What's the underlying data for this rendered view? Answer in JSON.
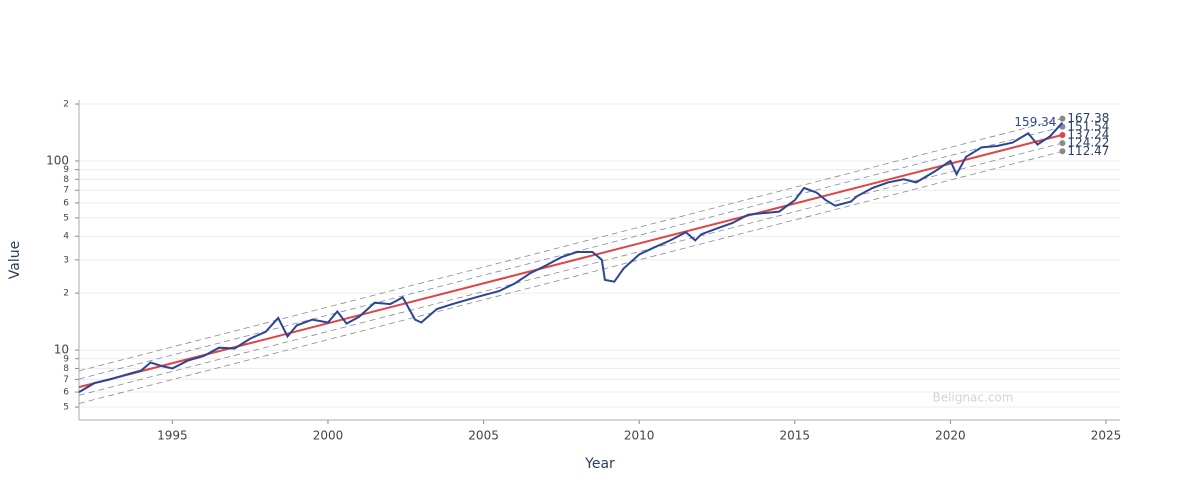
{
  "chart_data": {
    "type": "line",
    "xlabel": "Year",
    "ylabel": "Value",
    "watermark": "Belignac.com",
    "xlim": [
      1992,
      2025.45
    ],
    "xticks": [
      1995,
      2000,
      2005,
      2010,
      2015,
      2020,
      2025
    ],
    "ylim": [
      4.27,
      210
    ],
    "log_y": true,
    "grid": true,
    "yticks": [
      5,
      6,
      7,
      8,
      9,
      10,
      {
        "value": 20,
        "label": "2"
      },
      {
        "value": 30,
        "label": "3"
      },
      {
        "value": 40,
        "label": "4"
      },
      {
        "value": 50,
        "label": "5"
      },
      {
        "value": 60,
        "label": "6"
      },
      {
        "value": 70,
        "label": "7"
      },
      {
        "value": 80,
        "label": "8"
      },
      {
        "value": 90,
        "label": "9"
      },
      100,
      {
        "value": 200,
        "label": "2"
      }
    ],
    "series": [
      {
        "color": "#2a4694",
        "role": "price",
        "x": [
          1992.0,
          1992.5,
          1993.0,
          1993.5,
          1994.0,
          1994.3,
          1994.7,
          1995.0,
          1995.5,
          1996.0,
          1996.5,
          1997.0,
          1997.5,
          1998.0,
          1998.4,
          1998.7,
          1999.0,
          1999.5,
          2000.0,
          2000.3,
          2000.6,
          2001.0,
          2001.5,
          2002.0,
          2002.4,
          2002.8,
          2003.0,
          2003.5,
          2004.0,
          2004.5,
          2005.0,
          2005.5,
          2006.0,
          2006.5,
          2007.0,
          2007.5,
          2008.0,
          2008.5,
          2008.8,
          2008.9,
          2009.2,
          2009.5,
          2010.0,
          2010.5,
          2011.0,
          2011.5,
          2011.8,
          2012.0,
          2012.5,
          2013.0,
          2013.5,
          2014.0,
          2014.5,
          2015.0,
          2015.3,
          2015.7,
          2016.0,
          2016.3,
          2016.8,
          2017.0,
          2017.5,
          2018.0,
          2018.5,
          2018.9,
          2019.5,
          2020.0,
          2020.2,
          2020.5,
          2021.0,
          2021.5,
          2022.0,
          2022.5,
          2022.8,
          2023.2,
          2023.6
        ],
        "values": [
          6.0,
          6.7,
          7.0,
          7.4,
          7.8,
          8.6,
          8.2,
          8.0,
          8.8,
          9.3,
          10.3,
          10.2,
          11.5,
          12.5,
          14.8,
          11.8,
          13.5,
          14.5,
          14.0,
          16.0,
          13.8,
          15.0,
          17.8,
          17.5,
          19.0,
          14.5,
          14.0,
          16.5,
          17.5,
          18.5,
          19.5,
          20.5,
          22.5,
          25.5,
          28.0,
          31.0,
          33.0,
          33.0,
          30.0,
          23.5,
          23.0,
          27.0,
          32.0,
          35.0,
          38.0,
          42.0,
          38.0,
          41.0,
          44.0,
          47.0,
          52.0,
          53.0,
          54.0,
          62.0,
          72.0,
          68.0,
          62.0,
          58.0,
          61.0,
          65.0,
          72.0,
          77.0,
          80.0,
          77.0,
          88.0,
          100.0,
          85.0,
          105.0,
          118.0,
          120.0,
          125.0,
          140.0,
          122.0,
          135.0,
          159.34
        ]
      },
      {
        "color": "#8a8a8a",
        "dashed": true,
        "x": [
          1992,
          2023.6
        ],
        "values": [
          7.76,
          167.38
        ]
      },
      {
        "color": "#7a8ab0",
        "dashed": true,
        "x": [
          1992,
          2023.6
        ],
        "values": [
          7.03,
          151.54
        ]
      },
      {
        "color": "#e04444",
        "x": [
          1992,
          2023.6
        ],
        "values": [
          6.37,
          137.24
        ]
      },
      {
        "color": "#8a8a8a",
        "dashed": true,
        "x": [
          1992,
          2023.6
        ],
        "values": [
          5.77,
          124.22
        ]
      },
      {
        "color": "#8a8a8a",
        "dashed": true,
        "x": [
          1992,
          2023.6
        ],
        "values": [
          5.22,
          112.47
        ]
      }
    ]
  }
}
